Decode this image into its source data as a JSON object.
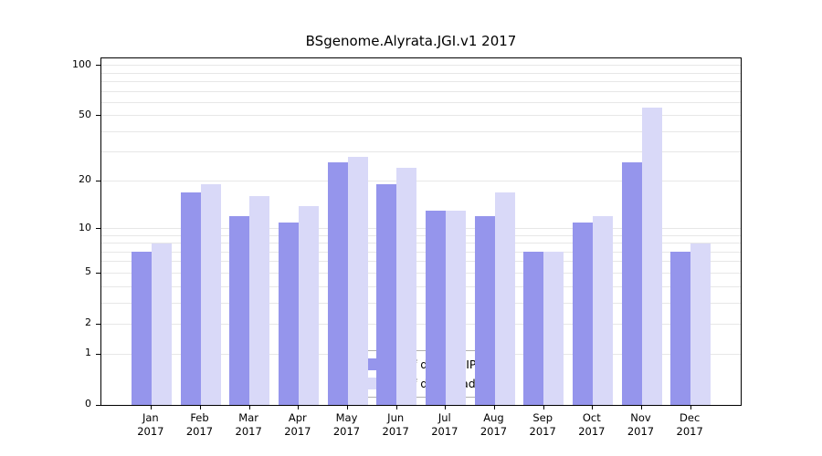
{
  "title": "BSgenome.Alyrata.JGI.v1 2017",
  "chart_data": {
    "type": "bar",
    "title": "BSgenome.Alyrata.JGI.v1 2017",
    "xlabel": "",
    "ylabel": "",
    "scale": "log10(1+x)",
    "grid": true,
    "legend_position": "bottom-center-inside",
    "year": "2017",
    "categories": [
      "Jan",
      "Feb",
      "Mar",
      "Apr",
      "May",
      "Jun",
      "Jul",
      "Aug",
      "Sep",
      "Oct",
      "Nov",
      "Dec"
    ],
    "yticks": [
      0,
      1,
      2,
      5,
      10,
      20,
      50,
      100
    ],
    "ylim": [
      0,
      110
    ],
    "series": [
      {
        "name": "Nb of distinct IPs",
        "color": "#9595ec",
        "values": [
          7,
          17,
          12,
          11,
          26,
          19,
          13,
          12,
          7,
          11,
          26,
          7
        ]
      },
      {
        "name": "Nb of downloads",
        "color": "#d9d9f8",
        "values": [
          8,
          19,
          16,
          14,
          28,
          24,
          13,
          17,
          7,
          12,
          56,
          8
        ]
      }
    ],
    "colors": {
      "distinct_ips": "#9595ec",
      "downloads": "#d9d9f8",
      "gridline": "#e7e7e7"
    }
  }
}
